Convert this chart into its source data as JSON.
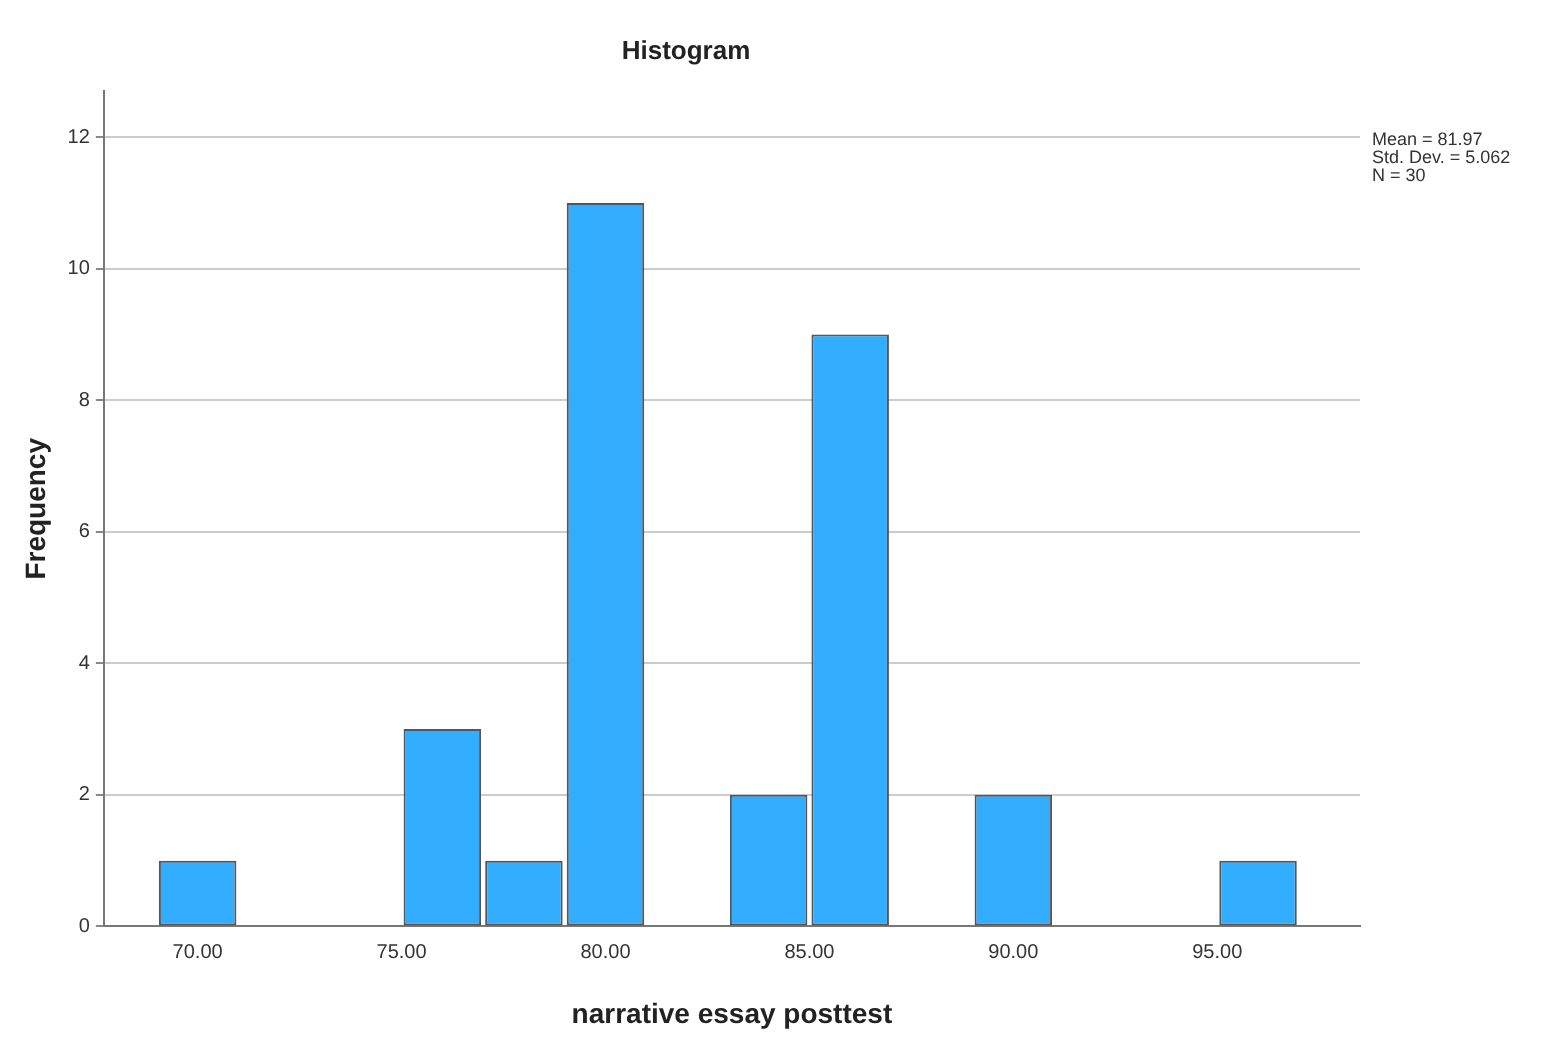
{
  "chart_data": {
    "type": "histogram",
    "title": "Histogram",
    "xlabel": "narrative essay posttest",
    "ylabel": "Frequency",
    "bins": [
      69,
      71,
      73,
      75,
      77,
      79,
      81,
      83,
      85,
      87,
      89,
      91,
      93,
      95,
      97
    ],
    "values": [
      1,
      0,
      0,
      3,
      1,
      11,
      0,
      2,
      9,
      0,
      2,
      0,
      0,
      1
    ],
    "color": "#33adff",
    "xlim": [
      67.7,
      98.5
    ],
    "xticks": [
      {
        "value": 70,
        "label": "70.00"
      },
      {
        "value": 75,
        "label": "75.00"
      },
      {
        "value": 80,
        "label": "80.00"
      },
      {
        "value": 85,
        "label": "85.00"
      },
      {
        "value": 90,
        "label": "90.00"
      },
      {
        "value": 95,
        "label": "95.00"
      }
    ],
    "ylim": [
      0,
      12.7
    ],
    "yticks": [
      0,
      2,
      4,
      6,
      8,
      10,
      12
    ],
    "grid": "y",
    "annotations": [
      "Mean = 81.97",
      "Std. Dev. = 5.062",
      "N = 30"
    ]
  }
}
